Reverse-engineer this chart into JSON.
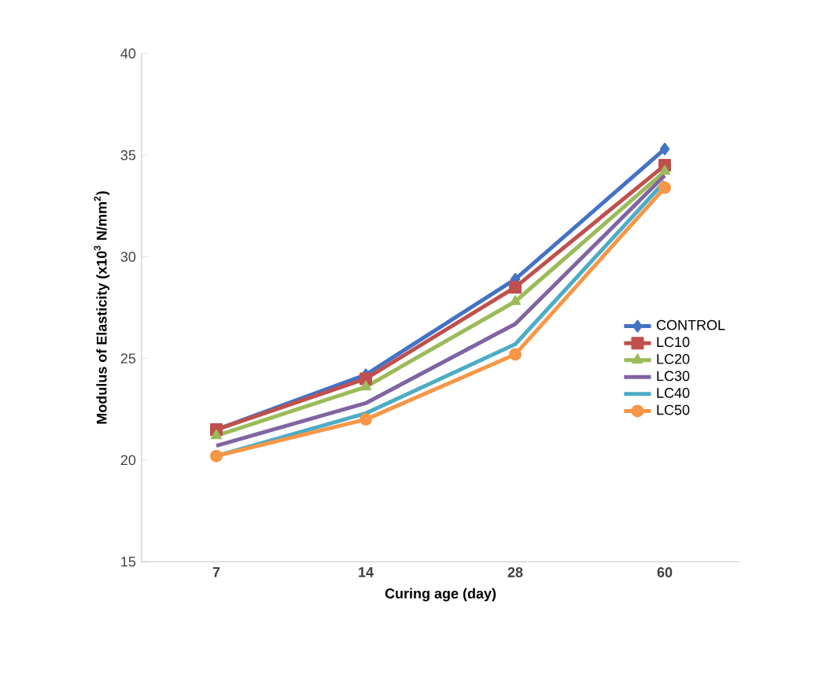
{
  "chart_data": {
    "type": "line",
    "xlabel": "Curing age (day)",
    "ylabel": "Modulus of Elasticity (x10$^{3}$ N/mm$^{2}$)",
    "categories": [
      "7",
      "14",
      "28",
      "60"
    ],
    "ylim": [
      15,
      40
    ],
    "yticks": [
      15,
      20,
      25,
      30,
      35,
      40
    ],
    "grid": false,
    "legend": "right",
    "line_style": "solid",
    "series": [
      {
        "name": "CONTROL",
        "color": "#4472c4",
        "marker": "diamond",
        "values": [
          21.5,
          24.2,
          28.9,
          35.3
        ]
      },
      {
        "name": "LC10",
        "color": "#c0504d",
        "marker": "square",
        "values": [
          21.5,
          24.0,
          28.5,
          34.5
        ]
      },
      {
        "name": "LC20",
        "color": "#9bbb59",
        "marker": "triangle",
        "values": [
          21.2,
          23.6,
          27.8,
          34.2
        ]
      },
      {
        "name": "LC30",
        "color": "#8064a2",
        "values": [
          20.7,
          22.8,
          26.7,
          34.0
        ]
      },
      {
        "name": "LC40",
        "color": "#4bacc6",
        "values": [
          20.2,
          22.3,
          25.7,
          33.7
        ]
      },
      {
        "name": "LC50",
        "color": "#f79646",
        "marker": "circle",
        "values": [
          20.2,
          22.0,
          25.2,
          33.4
        ]
      }
    ]
  }
}
